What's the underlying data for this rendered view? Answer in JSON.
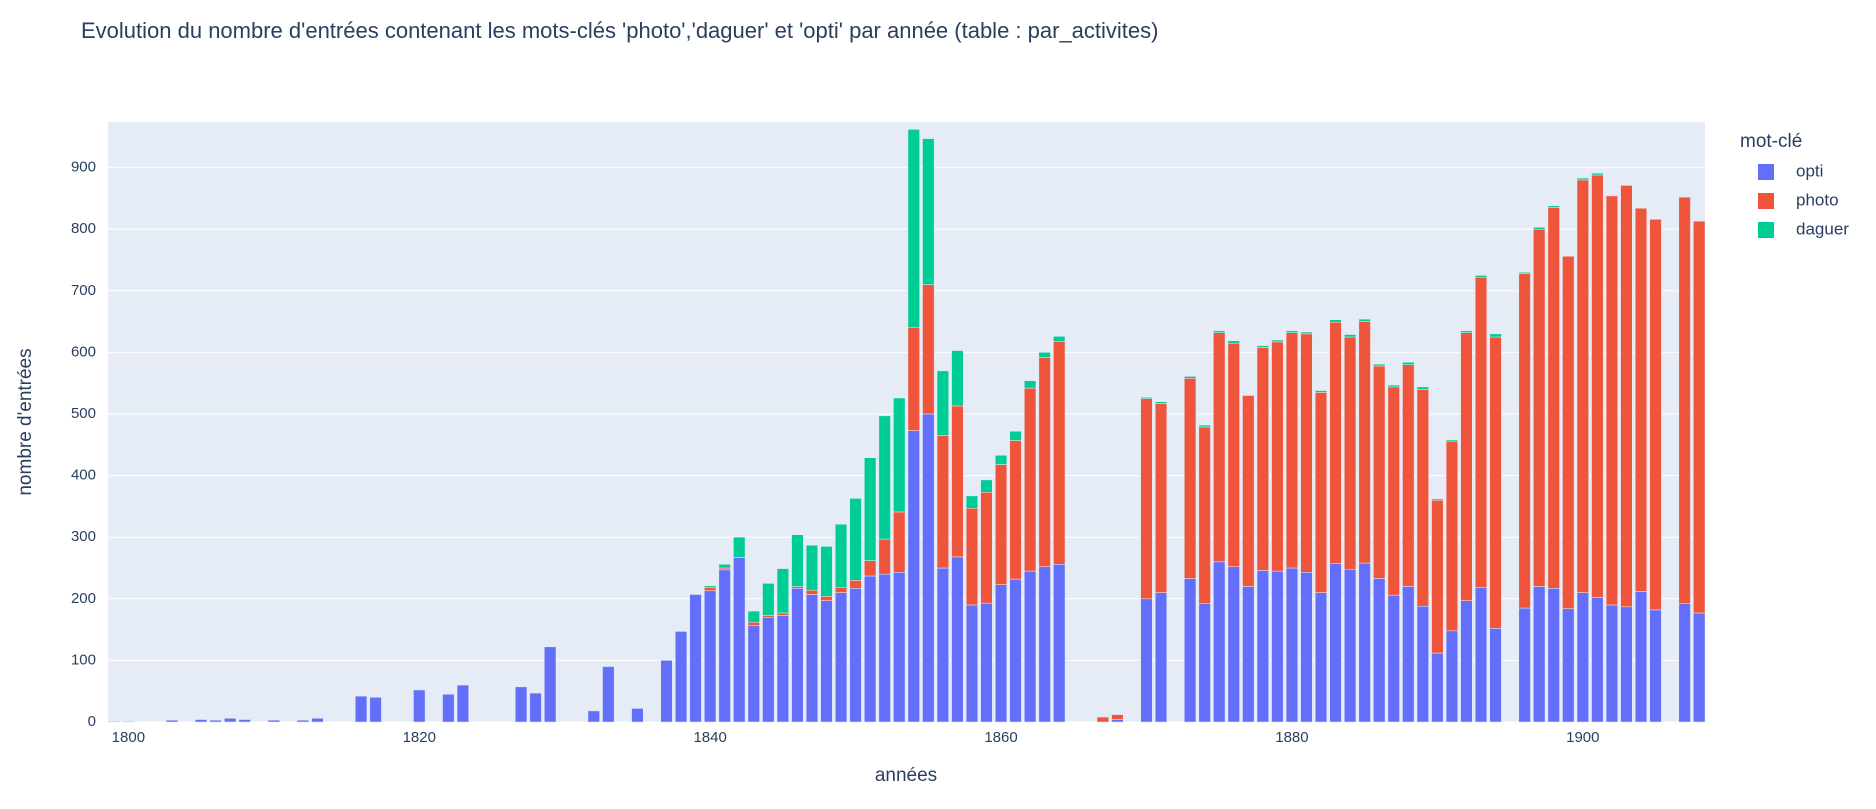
{
  "chart_data": {
    "type": "bar",
    "stacked": true,
    "title": "Evolution du nombre d'entrées contenant les mots-clés 'photo','daguer' et 'opti' par année (table : par_activites)",
    "xlabel": "années",
    "ylabel": "nombre d'entrées",
    "legend_title": "mot-clé",
    "x": [
      1799,
      1800,
      1803,
      1805,
      1806,
      1807,
      1808,
      1810,
      1812,
      1813,
      1816,
      1817,
      1820,
      1822,
      1823,
      1827,
      1828,
      1829,
      1832,
      1833,
      1835,
      1837,
      1838,
      1839,
      1840,
      1841,
      1842,
      1843,
      1844,
      1845,
      1846,
      1847,
      1848,
      1849,
      1850,
      1851,
      1852,
      1853,
      1854,
      1855,
      1856,
      1857,
      1858,
      1859,
      1860,
      1861,
      1862,
      1863,
      1864,
      1867,
      1868,
      1870,
      1871,
      1873,
      1874,
      1875,
      1876,
      1877,
      1878,
      1879,
      1880,
      1881,
      1882,
      1883,
      1884,
      1885,
      1886,
      1887,
      1888,
      1889,
      1890,
      1891,
      1892,
      1893,
      1894,
      1896,
      1897,
      1898,
      1899,
      1900,
      1901,
      1902,
      1903,
      1904,
      1905,
      1907,
      1908
    ],
    "series": [
      {
        "name": "opti",
        "color": "#636efa",
        "values": [
          1,
          1,
          3,
          4,
          3,
          6,
          4,
          3,
          3,
          6,
          42,
          40,
          52,
          45,
          60,
          57,
          47,
          122,
          18,
          90,
          22,
          100,
          147,
          207,
          213,
          247,
          267,
          157,
          170,
          173,
          217,
          207,
          197,
          210,
          217,
          237,
          240,
          243,
          473,
          500,
          250,
          268,
          190,
          193,
          223,
          232,
          245,
          252,
          256,
          null,
          4,
          200,
          210,
          233,
          192,
          260,
          252,
          220,
          246,
          245,
          250,
          243,
          210,
          257,
          248,
          258,
          233,
          206,
          220,
          188,
          112,
          148,
          197,
          218,
          152,
          185,
          220,
          217,
          184,
          210,
          202,
          190,
          187,
          212,
          182,
          192,
          177
        ]
      },
      {
        "name": "photo",
        "color": "#EF553B",
        "values": [
          null,
          null,
          null,
          null,
          null,
          null,
          null,
          null,
          null,
          null,
          null,
          null,
          null,
          null,
          null,
          null,
          null,
          null,
          null,
          null,
          null,
          null,
          null,
          null,
          5,
          3,
          null,
          5,
          3,
          4,
          3,
          7,
          7,
          8,
          13,
          25,
          57,
          98,
          167,
          210,
          215,
          245,
          157,
          180,
          195,
          225,
          297,
          340,
          362,
          8,
          8,
          325,
          307,
          325,
          287,
          372,
          363,
          310,
          362,
          372,
          382,
          387,
          325,
          392,
          377,
          392,
          345,
          338,
          360,
          352,
          248,
          308,
          435,
          504,
          473,
          543,
          580,
          618,
          572,
          670,
          686,
          664,
          684,
          622,
          634,
          660,
          636
        ]
      },
      {
        "name": "daguer",
        "color": "#00cc96",
        "values": [
          null,
          null,
          null,
          null,
          null,
          null,
          null,
          null,
          null,
          null,
          null,
          null,
          null,
          null,
          null,
          null,
          null,
          null,
          null,
          null,
          null,
          null,
          null,
          null,
          3,
          6,
          33,
          18,
          52,
          72,
          84,
          73,
          81,
          103,
          133,
          167,
          200,
          185,
          322,
          237,
          105,
          90,
          20,
          20,
          15,
          15,
          12,
          8,
          8,
          null,
          null,
          2,
          3,
          3,
          3,
          3,
          4,
          null,
          3,
          3,
          3,
          3,
          3,
          4,
          4,
          4,
          3,
          3,
          4,
          4,
          2,
          2,
          3,
          3,
          5,
          2,
          3,
          3,
          null,
          3,
          3,
          null,
          null,
          null,
          null,
          null,
          null
        ]
      }
    ],
    "xlim": [
      1798.6,
      1908.4
    ],
    "ylim": [
      0,
      974
    ],
    "xticks": [
      1800,
      1820,
      1840,
      1860,
      1880,
      1900
    ],
    "yticks": [
      0,
      100,
      200,
      300,
      400,
      500,
      600,
      700,
      800,
      900
    ],
    "grid": true,
    "legend": "right"
  }
}
